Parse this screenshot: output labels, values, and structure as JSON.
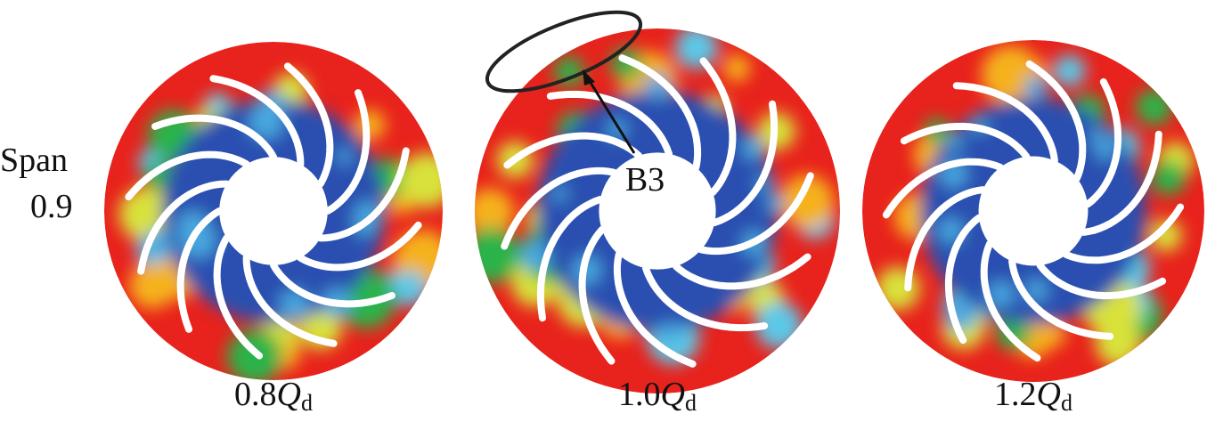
{
  "row_label": {
    "line1": "Span",
    "line2": "0.9"
  },
  "panels": [
    {
      "label": {
        "prefix": "0.8",
        "variable": "Q",
        "subscript": "d"
      }
    },
    {
      "label": {
        "prefix": "1.0",
        "variable": "Q",
        "subscript": "d"
      },
      "annotation": "B3"
    },
    {
      "label": {
        "prefix": "1.2",
        "variable": "Q",
        "subscript": "d"
      }
    }
  ]
}
